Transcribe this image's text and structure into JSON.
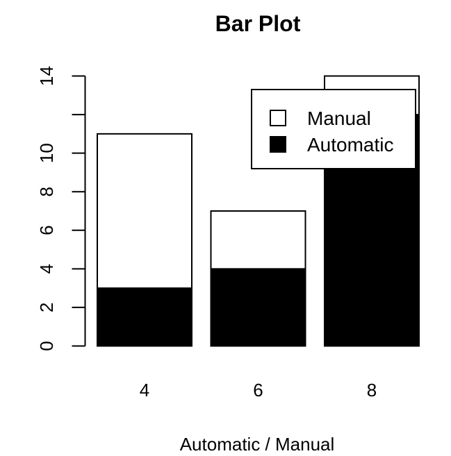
{
  "chart_data": {
    "type": "bar",
    "stacked": true,
    "title": "Bar Plot",
    "xlabel": "Automatic / Manual",
    "ylabel": "",
    "categories": [
      "4",
      "6",
      "8"
    ],
    "series": [
      {
        "name": "Automatic",
        "values": [
          3,
          4,
          12
        ],
        "color": "#000000"
      },
      {
        "name": "Manual",
        "values": [
          8,
          3,
          2
        ],
        "color": "#ffffff"
      }
    ],
    "ylim": [
      0,
      14
    ],
    "yticks": [
      0,
      2,
      4,
      6,
      8,
      10,
      12,
      14
    ],
    "ytick_labels": [
      "0",
      "2",
      "4",
      "6",
      "8",
      "10",
      "",
      "14"
    ],
    "grid": false,
    "legend": {
      "position": "top-right",
      "entries": [
        {
          "label": "Manual",
          "color": "#ffffff"
        },
        {
          "label": "Automatic",
          "color": "#000000"
        }
      ]
    }
  }
}
